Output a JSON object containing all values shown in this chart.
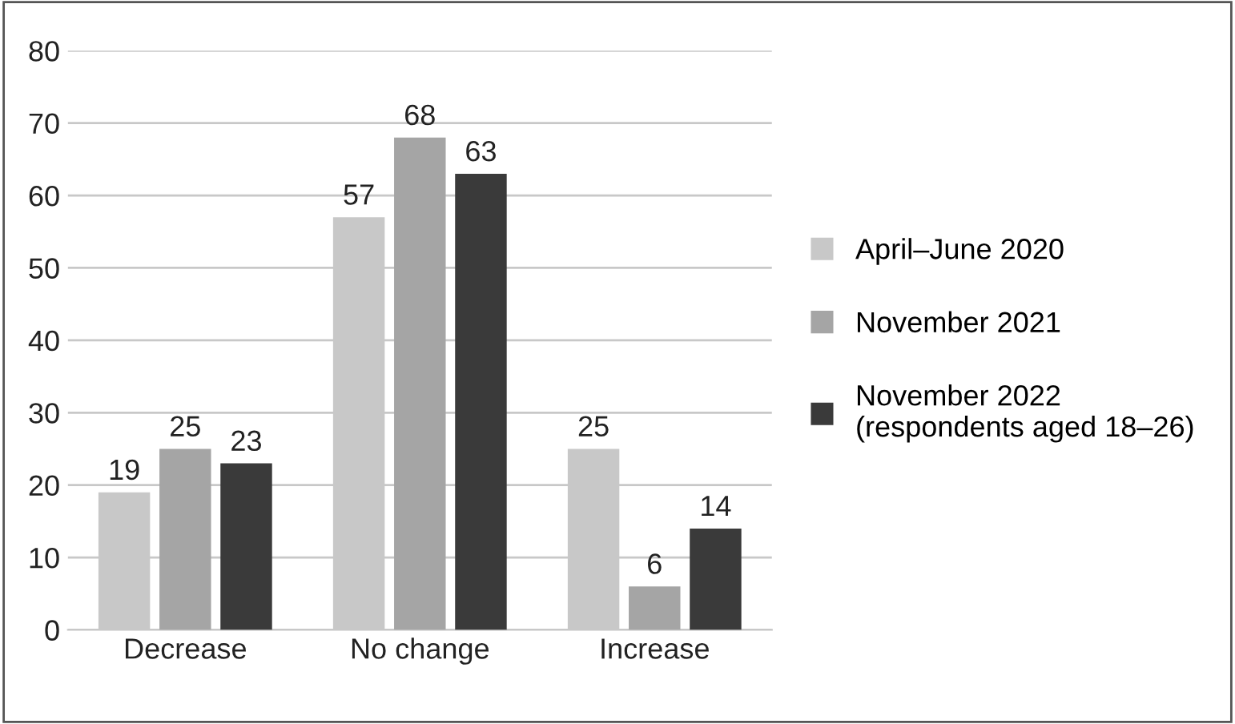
{
  "chart_data": {
    "type": "bar",
    "categories": [
      "Decrease",
      "No change",
      "Increase"
    ],
    "series": [
      {
        "name": "April–June 2020",
        "color": "#c8c8c8",
        "values": [
          19,
          57,
          25
        ]
      },
      {
        "name": "November 2021",
        "color": "#a5a5a5",
        "values": [
          25,
          68,
          6
        ]
      },
      {
        "name": "November 2022\n(respondents aged 18–26)",
        "color": "#3a3a3a",
        "values": [
          23,
          63,
          14
        ]
      }
    ],
    "ylim": [
      0,
      80
    ],
    "yticks": [
      0,
      10,
      20,
      30,
      40,
      50,
      60,
      70,
      80
    ],
    "grid": "y",
    "legend": "right",
    "data_labels": true
  }
}
